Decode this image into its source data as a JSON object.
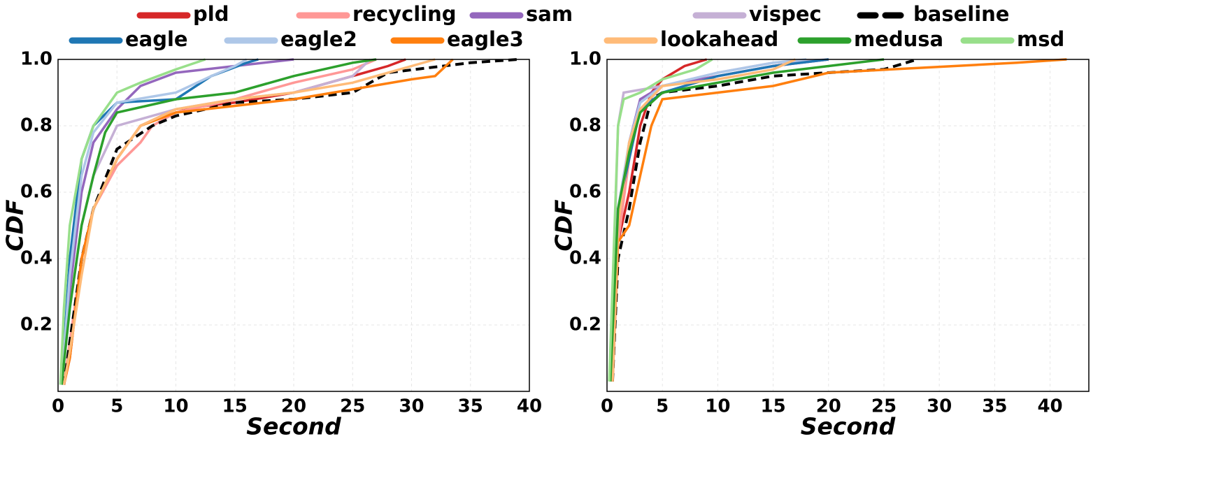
{
  "legend": [
    {
      "name": "pld",
      "color": "#d62728"
    },
    {
      "name": "recycling",
      "color": "#ff9896"
    },
    {
      "name": "sam",
      "color": "#9467bd"
    },
    {
      "name": "vispec",
      "color": "#c5b0d5"
    },
    {
      "name": "baseline",
      "color": "#000000",
      "dashed": true
    },
    {
      "name": "eagle",
      "color": "#1f77b4"
    },
    {
      "name": "eagle2",
      "color": "#aec7e8"
    },
    {
      "name": "eagle3",
      "color": "#ff7f0e"
    },
    {
      "name": "lookahead",
      "color": "#ffbb78"
    },
    {
      "name": "medusa",
      "color": "#2ca02c"
    },
    {
      "name": "msd",
      "color": "#98df8a"
    }
  ],
  "chart_data": [
    {
      "type": "line",
      "xlabel": "Second",
      "ylabel": "CDF",
      "grid": true,
      "xlim": [
        0,
        40
      ],
      "xticks": [
        0,
        5,
        10,
        15,
        20,
        25,
        30,
        35,
        40
      ],
      "ylim": [
        0,
        1
      ],
      "yticks": [
        0.2,
        0.4,
        0.6,
        0.8,
        {
          "value": 1,
          "label": "1.0"
        }
      ],
      "series": [
        {
          "x": [
            0.5,
            1,
            1.5,
            2,
            3,
            4,
            5,
            7,
            10,
            15,
            20,
            25,
            28,
            29.5
          ],
          "values": [
            0.02,
            0.1,
            0.25,
            0.4,
            0.55,
            0.62,
            0.7,
            0.8,
            0.85,
            0.87,
            0.9,
            0.95,
            0.98,
            1
          ]
        },
        {
          "x": [
            0.5,
            1,
            2,
            3,
            5,
            7,
            8,
            10,
            15,
            20,
            25,
            27
          ],
          "values": [
            0.02,
            0.15,
            0.4,
            0.55,
            0.68,
            0.75,
            0.8,
            0.84,
            0.88,
            0.93,
            0.97,
            1
          ]
        },
        {
          "x": [
            0.3,
            1,
            2,
            3,
            5,
            7,
            10,
            15,
            20
          ],
          "values": [
            0.02,
            0.3,
            0.6,
            0.75,
            0.85,
            0.92,
            0.96,
            0.98,
            1
          ]
        },
        {
          "x": [
            0.3,
            1,
            2,
            3,
            5,
            10,
            15,
            20,
            25,
            26.5
          ],
          "values": [
            0.02,
            0.25,
            0.5,
            0.65,
            0.8,
            0.85,
            0.88,
            0.9,
            0.95,
            1
          ]
        },
        {
          "x": [
            0.5,
            1,
            2,
            3,
            5,
            8,
            10,
            15,
            20,
            25,
            28,
            35,
            39
          ],
          "values": [
            0.02,
            0.15,
            0.4,
            0.55,
            0.73,
            0.8,
            0.83,
            0.87,
            0.88,
            0.9,
            0.96,
            0.99,
            1
          ]
        },
        {
          "x": [
            0.3,
            1,
            2,
            3,
            5,
            10,
            13,
            16,
            17
          ],
          "values": [
            0.02,
            0.4,
            0.7,
            0.8,
            0.87,
            0.88,
            0.95,
            0.99,
            1
          ]
        },
        {
          "x": [
            0.3,
            1,
            2,
            3,
            5,
            10,
            13,
            15,
            16
          ],
          "values": [
            0.02,
            0.35,
            0.65,
            0.78,
            0.87,
            0.9,
            0.95,
            0.98,
            1
          ]
        },
        {
          "x": [
            0.5,
            1,
            2,
            3,
            5,
            7,
            10,
            15,
            20,
            25,
            30,
            32,
            33.5
          ],
          "values": [
            0.02,
            0.1,
            0.4,
            0.55,
            0.7,
            0.8,
            0.84,
            0.86,
            0.88,
            0.91,
            0.94,
            0.95,
            1
          ]
        },
        {
          "x": [
            0.5,
            1,
            2,
            3,
            5,
            7,
            10,
            15,
            20,
            25,
            30,
            32
          ],
          "values": [
            0.02,
            0.12,
            0.35,
            0.55,
            0.7,
            0.8,
            0.85,
            0.88,
            0.9,
            0.93,
            0.98,
            1
          ]
        },
        {
          "x": [
            0.3,
            1,
            2,
            3,
            4,
            5,
            10,
            15,
            20,
            25,
            27
          ],
          "values": [
            0.02,
            0.25,
            0.5,
            0.65,
            0.78,
            0.84,
            0.88,
            0.9,
            0.95,
            0.99,
            1
          ]
        },
        {
          "x": [
            0.2,
            0.5,
            1,
            2,
            3,
            5,
            7,
            10,
            12.5
          ],
          "values": [
            0.02,
            0.25,
            0.5,
            0.7,
            0.8,
            0.9,
            0.93,
            0.97,
            1
          ]
        }
      ]
    },
    {
      "type": "line",
      "xlabel": "Second",
      "ylabel": "CDF",
      "grid": true,
      "xlim": [
        0,
        43.5
      ],
      "xticks": [
        0,
        5,
        10,
        15,
        20,
        25,
        30,
        35,
        40
      ],
      "ylim": [
        0,
        1
      ],
      "yticks": [
        0.2,
        0.4,
        0.6,
        0.8,
        {
          "value": 1,
          "label": "1.0"
        }
      ],
      "series": [
        {
          "x": [
            0.5,
            1,
            2,
            3,
            4,
            5,
            7,
            9
          ],
          "values": [
            0.03,
            0.45,
            0.6,
            0.8,
            0.9,
            0.94,
            0.98,
            1
          ]
        },
        {
          "x": [
            0.5,
            1,
            2,
            3,
            5,
            10,
            15,
            20
          ],
          "values": [
            0.03,
            0.45,
            0.7,
            0.85,
            0.92,
            0.95,
            0.98,
            1
          ]
        },
        {
          "x": [
            0.3,
            1,
            2,
            3,
            5,
            10,
            15,
            20
          ],
          "values": [
            0.03,
            0.5,
            0.75,
            0.88,
            0.92,
            0.95,
            0.98,
            1
          ]
        },
        {
          "x": [
            0.3,
            1,
            1.5,
            5,
            10,
            15,
            20
          ],
          "values": [
            0.03,
            0.8,
            0.9,
            0.92,
            0.96,
            0.99,
            1
          ]
        },
        {
          "x": [
            0.5,
            1,
            2,
            3,
            4,
            5,
            10,
            15,
            20,
            25,
            28
          ],
          "values": [
            0.03,
            0.4,
            0.55,
            0.75,
            0.88,
            0.9,
            0.92,
            0.95,
            0.96,
            0.97,
            1
          ]
        },
        {
          "x": [
            0.3,
            1,
            2,
            3,
            5,
            10,
            15,
            20
          ],
          "values": [
            0.03,
            0.55,
            0.7,
            0.85,
            0.9,
            0.95,
            0.98,
            1
          ]
        },
        {
          "x": [
            0.3,
            1,
            2,
            3,
            5,
            10,
            15,
            18
          ],
          "values": [
            0.03,
            0.55,
            0.75,
            0.87,
            0.92,
            0.96,
            0.99,
            1
          ]
        },
        {
          "x": [
            0.5,
            1,
            2,
            3,
            4,
            5,
            10,
            15,
            20,
            37,
            41.5
          ],
          "values": [
            0.03,
            0.45,
            0.5,
            0.65,
            0.8,
            0.88,
            0.9,
            0.92,
            0.96,
            0.99,
            1
          ]
        },
        {
          "x": [
            0.5,
            1,
            2,
            3,
            5,
            10,
            15,
            17
          ],
          "values": [
            0.03,
            0.5,
            0.75,
            0.85,
            0.92,
            0.94,
            0.97,
            1
          ]
        },
        {
          "x": [
            0.3,
            1,
            2,
            3,
            5,
            10,
            15,
            20,
            25
          ],
          "values": [
            0.03,
            0.55,
            0.72,
            0.84,
            0.9,
            0.93,
            0.96,
            0.98,
            1
          ]
        },
        {
          "x": [
            0.2,
            1,
            1.5,
            3,
            5,
            8,
            9.5
          ],
          "values": [
            0.03,
            0.8,
            0.88,
            0.9,
            0.94,
            0.97,
            1
          ]
        }
      ]
    }
  ]
}
